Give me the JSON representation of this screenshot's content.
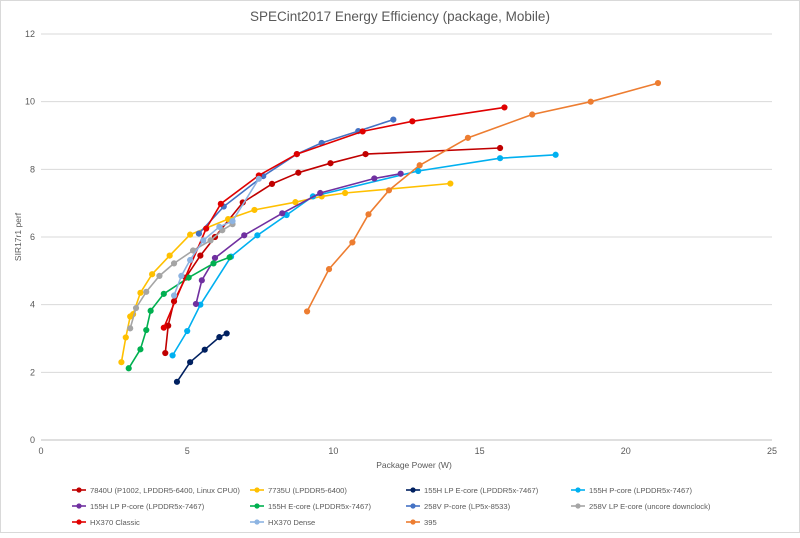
{
  "chart_data": {
    "type": "scatter",
    "title": "SPECint2017 Energy Efficiency (package, Mobile)",
    "xlabel": "Package Power (W)",
    "ylabel": "SIR17r1 perf",
    "xlim": [
      0,
      25
    ],
    "ylim": [
      0,
      12
    ],
    "x_ticks": [
      0,
      5,
      10,
      15,
      20,
      25
    ],
    "y_ticks": [
      0,
      2,
      4,
      6,
      8,
      10,
      12
    ],
    "grid": "horizontal",
    "legend_position": "bottom",
    "series": [
      {
        "name": "7840U (P1002, LPDDR5-6400, Linux CPU0)",
        "color": "#c00000",
        "x": [
          4.25,
          4.35,
          4.55,
          4.95,
          5.45,
          5.95,
          6.9,
          7.9,
          8.8,
          9.9,
          11.1,
          15.7
        ],
        "y": [
          2.57,
          3.38,
          4.1,
          4.8,
          5.45,
          6.0,
          7.02,
          7.57,
          7.9,
          8.18,
          8.45,
          8.63
        ]
      },
      {
        "name": "7735U (LPDDR5-6400)",
        "color": "#ffc000",
        "x": [
          2.75,
          2.9,
          3.05,
          3.15,
          3.4,
          3.8,
          4.4,
          5.1,
          6.4,
          7.3,
          8.7,
          9.6,
          10.4,
          14.0
        ],
        "y": [
          2.3,
          3.03,
          3.65,
          3.72,
          4.35,
          4.9,
          5.45,
          6.07,
          6.53,
          6.8,
          7.03,
          7.2,
          7.3,
          7.58
        ]
      },
      {
        "name": "155H LP E-core (LPDDR5x-7467)",
        "color": "#002060",
        "x": [
          4.65,
          5.1,
          5.6,
          6.1,
          6.35
        ],
        "y": [
          1.72,
          2.3,
          2.67,
          3.04,
          3.15
        ]
      },
      {
        "name": "155H P-core (LPDDR5x-7467)",
        "color": "#00b0f0",
        "x": [
          4.5,
          5.0,
          5.45,
          6.5,
          7.4,
          8.4,
          9.3,
          12.9,
          15.7,
          17.6
        ],
        "y": [
          2.5,
          3.22,
          4.0,
          5.42,
          6.05,
          6.65,
          7.2,
          7.95,
          8.33,
          8.43
        ]
      },
      {
        "name": "155H LP P-core (LPDDR5x-7467)",
        "color": "#7030a0",
        "x": [
          5.3,
          5.5,
          5.95,
          6.95,
          8.25,
          9.55,
          11.4,
          12.3
        ],
        "y": [
          4.02,
          4.72,
          5.38,
          6.05,
          6.7,
          7.3,
          7.73,
          7.87
        ]
      },
      {
        "name": "155H E-core (LPDDR5x-7467)",
        "color": "#00b050",
        "x": [
          3.0,
          3.4,
          3.6,
          3.75,
          4.2,
          5.05,
          5.9,
          6.45
        ],
        "y": [
          2.12,
          2.68,
          3.25,
          3.82,
          4.32,
          4.8,
          5.22,
          5.4
        ]
      },
      {
        "name": "258V P-core (LP5x-8533)",
        "color": "#4472c4",
        "x": [
          5.4,
          6.25,
          7.6,
          8.75,
          9.6,
          10.85,
          12.05
        ],
        "y": [
          6.1,
          6.9,
          7.8,
          8.45,
          8.78,
          9.13,
          9.47
        ]
      },
      {
        "name": "258V LP E-core (uncore downclock)",
        "color": "#a5a5a5",
        "x": [
          3.05,
          3.25,
          3.6,
          4.05,
          4.55,
          5.2,
          5.8,
          6.2,
          6.55
        ],
        "y": [
          3.3,
          3.9,
          4.38,
          4.85,
          5.22,
          5.6,
          5.9,
          6.2,
          6.38
        ]
      },
      {
        "name": "HX370 Classic",
        "color": "#e00000",
        "x": [
          4.2,
          5.65,
          6.15,
          7.45,
          8.75,
          11.0,
          12.7,
          15.85
        ],
        "y": [
          3.32,
          6.25,
          6.98,
          7.82,
          8.45,
          9.12,
          9.42,
          9.83
        ]
      },
      {
        "name": "HX370 Dense",
        "color": "#8db4e2",
        "x": [
          4.55,
          4.8,
          5.1,
          5.55,
          6.1,
          6.55,
          7.45
        ],
        "y": [
          4.27,
          4.85,
          5.32,
          5.9,
          6.3,
          6.47,
          7.72
        ]
      },
      {
        "name": "395",
        "color": "#ed7d31",
        "x": [
          9.1,
          9.85,
          10.65,
          11.2,
          11.9,
          12.95,
          14.6,
          16.8,
          18.8,
          21.1
        ],
        "y": [
          3.8,
          5.05,
          5.84,
          6.67,
          7.38,
          8.12,
          8.93,
          9.62,
          10.0,
          10.55
        ]
      }
    ]
  }
}
